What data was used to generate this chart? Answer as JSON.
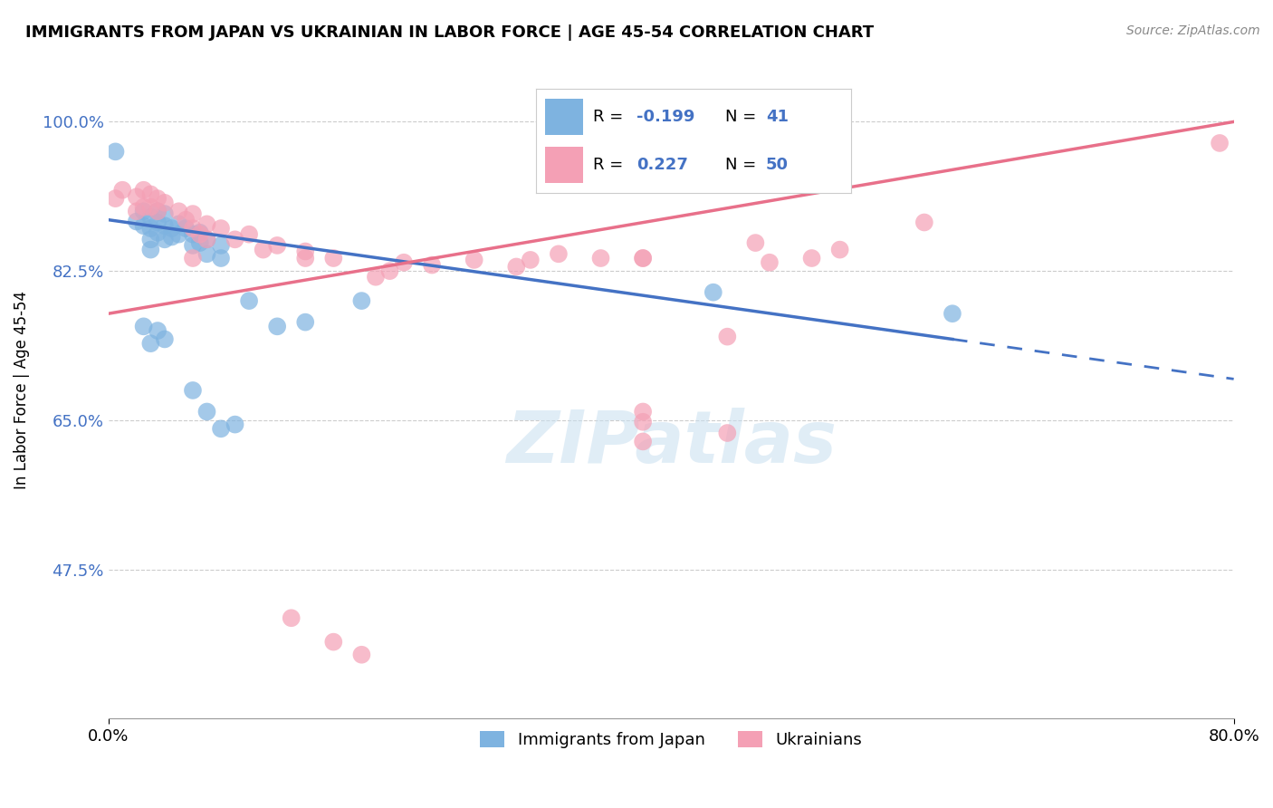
{
  "title": "IMMIGRANTS FROM JAPAN VS UKRAINIAN IN LABOR FORCE | AGE 45-54 CORRELATION CHART",
  "source": "Source: ZipAtlas.com",
  "ylabel": "In Labor Force | Age 45-54",
  "xlim": [
    0.0,
    0.8
  ],
  "ylim": [
    0.3,
    1.07
  ],
  "yticks": [
    0.475,
    0.65,
    0.825,
    1.0
  ],
  "ytick_labels": [
    "47.5%",
    "65.0%",
    "82.5%",
    "100.0%"
  ],
  "xtick_labels": [
    "0.0%",
    "80.0%"
  ],
  "color_japan": "#7EB3E0",
  "color_ukraine": "#F4A0B5",
  "trendline_japan_color": "#4472C4",
  "trendline_ukraine_color": "#E8708A",
  "japan_scatter": [
    [
      0.005,
      0.965
    ],
    [
      0.02,
      0.883
    ],
    [
      0.025,
      0.895
    ],
    [
      0.025,
      0.878
    ],
    [
      0.03,
      0.888
    ],
    [
      0.03,
      0.875
    ],
    [
      0.03,
      0.862
    ],
    [
      0.03,
      0.85
    ],
    [
      0.035,
      0.895
    ],
    [
      0.035,
      0.882
    ],
    [
      0.035,
      0.87
    ],
    [
      0.04,
      0.892
    ],
    [
      0.04,
      0.878
    ],
    [
      0.04,
      0.862
    ],
    [
      0.045,
      0.875
    ],
    [
      0.045,
      0.865
    ],
    [
      0.05,
      0.88
    ],
    [
      0.05,
      0.868
    ],
    [
      0.055,
      0.875
    ],
    [
      0.06,
      0.868
    ],
    [
      0.06,
      0.855
    ],
    [
      0.065,
      0.87
    ],
    [
      0.065,
      0.858
    ],
    [
      0.07,
      0.862
    ],
    [
      0.07,
      0.845
    ],
    [
      0.08,
      0.855
    ],
    [
      0.08,
      0.84
    ],
    [
      0.1,
      0.79
    ],
    [
      0.12,
      0.76
    ],
    [
      0.14,
      0.765
    ],
    [
      0.025,
      0.76
    ],
    [
      0.03,
      0.74
    ],
    [
      0.035,
      0.755
    ],
    [
      0.04,
      0.745
    ],
    [
      0.06,
      0.685
    ],
    [
      0.07,
      0.66
    ],
    [
      0.08,
      0.64
    ],
    [
      0.09,
      0.645
    ],
    [
      0.18,
      0.79
    ],
    [
      0.43,
      0.8
    ],
    [
      0.6,
      0.775
    ]
  ],
  "ukraine_scatter": [
    [
      0.005,
      0.91
    ],
    [
      0.01,
      0.92
    ],
    [
      0.02,
      0.912
    ],
    [
      0.02,
      0.895
    ],
    [
      0.025,
      0.92
    ],
    [
      0.025,
      0.9
    ],
    [
      0.03,
      0.915
    ],
    [
      0.03,
      0.9
    ],
    [
      0.035,
      0.91
    ],
    [
      0.035,
      0.895
    ],
    [
      0.04,
      0.905
    ],
    [
      0.05,
      0.895
    ],
    [
      0.055,
      0.885
    ],
    [
      0.06,
      0.875
    ],
    [
      0.06,
      0.892
    ],
    [
      0.065,
      0.868
    ],
    [
      0.07,
      0.88
    ],
    [
      0.08,
      0.875
    ],
    [
      0.09,
      0.862
    ],
    [
      0.1,
      0.868
    ],
    [
      0.11,
      0.85
    ],
    [
      0.12,
      0.855
    ],
    [
      0.14,
      0.848
    ],
    [
      0.14,
      0.84
    ],
    [
      0.16,
      0.84
    ],
    [
      0.19,
      0.818
    ],
    [
      0.2,
      0.825
    ],
    [
      0.21,
      0.835
    ],
    [
      0.23,
      0.832
    ],
    [
      0.26,
      0.838
    ],
    [
      0.29,
      0.83
    ],
    [
      0.38,
      0.84
    ],
    [
      0.38,
      0.66
    ],
    [
      0.38,
      0.648
    ],
    [
      0.38,
      0.625
    ],
    [
      0.44,
      0.748
    ],
    [
      0.44,
      0.635
    ],
    [
      0.38,
      0.84
    ],
    [
      0.13,
      0.418
    ],
    [
      0.16,
      0.39
    ],
    [
      0.18,
      0.375
    ],
    [
      0.79,
      0.975
    ],
    [
      0.58,
      0.882
    ],
    [
      0.46,
      0.858
    ],
    [
      0.47,
      0.835
    ],
    [
      0.5,
      0.84
    ],
    [
      0.52,
      0.85
    ],
    [
      0.3,
      0.838
    ],
    [
      0.32,
      0.845
    ],
    [
      0.35,
      0.84
    ],
    [
      0.06,
      0.84
    ],
    [
      0.07,
      0.862
    ]
  ]
}
